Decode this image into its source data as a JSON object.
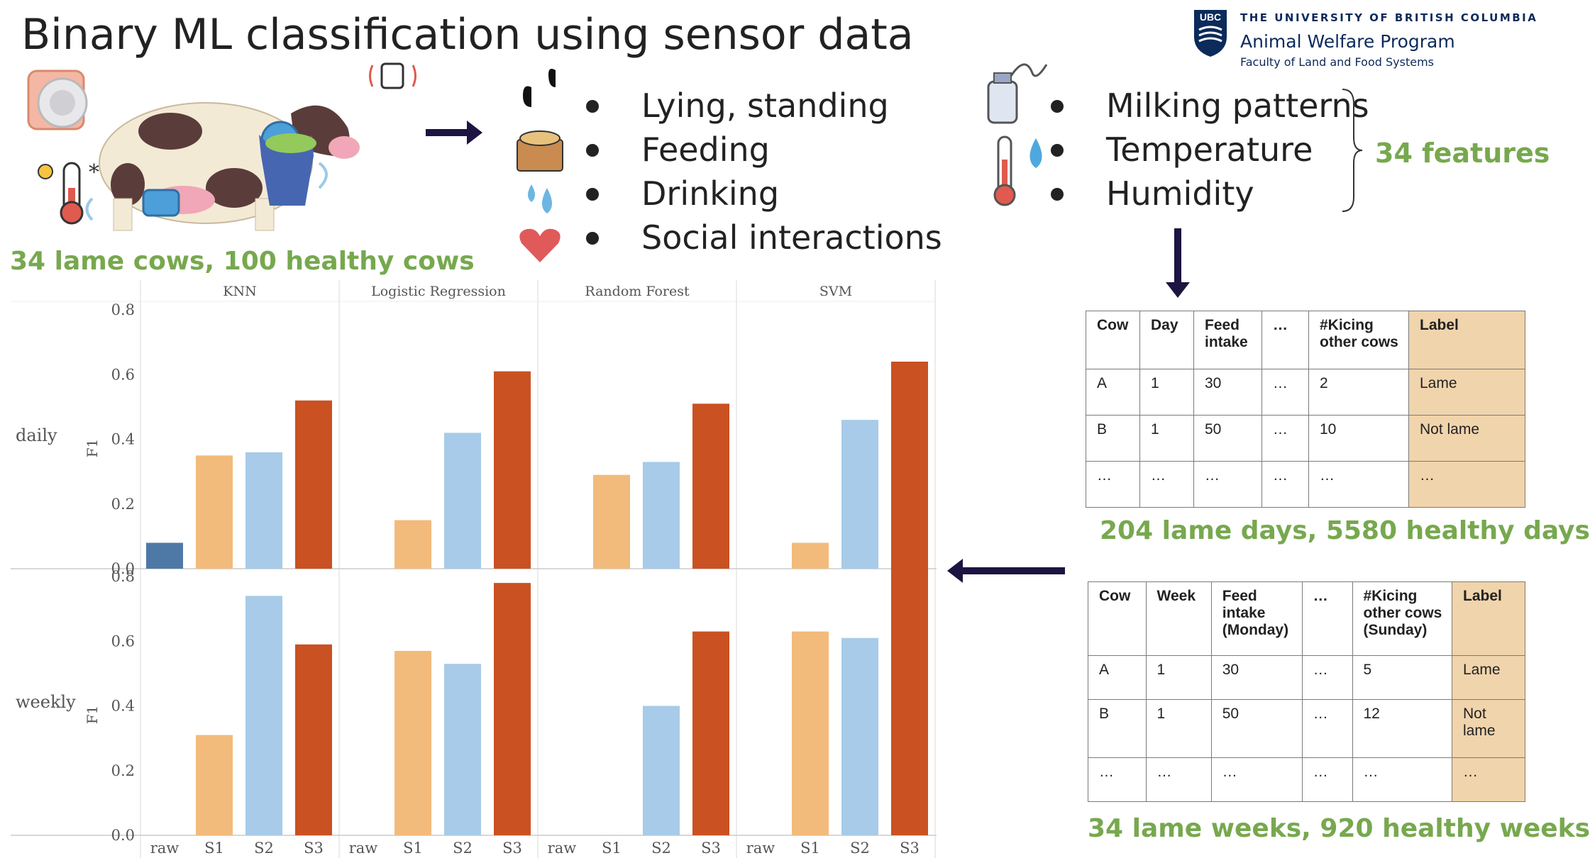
{
  "title": "Binary ML classification using sensor data",
  "university": {
    "badge": "UBC",
    "name": "THE UNIVERSITY OF BRITISH COLUMBIA",
    "program": "Animal Welfare Program",
    "faculty": "Faculty of Land and Food Systems"
  },
  "icons": {
    "cow": "cow-icon",
    "sensor": "sensor-icon",
    "thermometer": "thermometer-icon",
    "feeder": "feeder-icon",
    "hooves": "hooves-icon",
    "feed": "feed-icon",
    "drops": "drops-icon",
    "heart": "heart-icon",
    "milk_bottle": "milk-bottle-icon",
    "temperature": "temperature-icon"
  },
  "behaviors": [
    "Lying, standing",
    "Feeding",
    "Drinking",
    "Social interactions"
  ],
  "environment": [
    "Milking patterns",
    "Temperature",
    "Humidity"
  ],
  "features_label": "34 features",
  "cows_label": "34 lame cows, 100 healthy cows",
  "days_label": "204 lame days, 5580 healthy days",
  "weeks_label": "34 lame weeks, 920 healthy weeks",
  "daily_table": {
    "headers": [
      "Cow",
      "Day",
      "Feed intake",
      "…",
      "#Kicing other cows",
      "Label"
    ],
    "rows": [
      [
        "A",
        "1",
        "30",
        "…",
        "2",
        "Lame"
      ],
      [
        "B",
        "1",
        "50",
        "…",
        "10",
        "Not lame"
      ],
      [
        "…",
        "…",
        "…",
        "…",
        "…",
        "…"
      ]
    ]
  },
  "weekly_table": {
    "headers": [
      "Cow",
      "Week",
      "Feed intake (Monday)",
      "…",
      "#Kicing other cows (Sunday)",
      "Label"
    ],
    "rows": [
      [
        "A",
        "1",
        "30",
        "…",
        "5",
        "Lame"
      ],
      [
        "B",
        "1",
        "50",
        "…",
        "12",
        "Not lame"
      ],
      [
        "…",
        "…",
        "…",
        "…",
        "…",
        "…"
      ]
    ]
  },
  "colors": {
    "raw": "#4e79a7",
    "S1": "#f2bb7b",
    "S2": "#a7cbe8",
    "S3": "#c95122",
    "accent_green": "#77a84e",
    "arrow": "#1d1442"
  },
  "chart_data": {
    "type": "bar",
    "facets": [
      "KNN",
      "Logistic Regression",
      "Random Forest",
      "SVM"
    ],
    "rows": [
      "daily",
      "weekly"
    ],
    "categories": [
      "raw",
      "S1",
      "S2",
      "S3"
    ],
    "ylabel": "F1",
    "ylim": [
      0,
      0.85
    ],
    "yticks": [
      "0.0",
      "0.2",
      "0.4",
      "0.6",
      "0.8"
    ],
    "series": [
      {
        "row": "daily",
        "facet": "KNN",
        "values": [
          0.08,
          0.35,
          0.36,
          0.52
        ]
      },
      {
        "row": "daily",
        "facet": "Logistic Regression",
        "values": [
          0,
          0.15,
          0.42,
          0.61
        ]
      },
      {
        "row": "daily",
        "facet": "Random Forest",
        "values": [
          0,
          0.29,
          0.33,
          0.51
        ]
      },
      {
        "row": "daily",
        "facet": "SVM",
        "values": [
          0,
          0.08,
          0.46,
          0.64
        ]
      },
      {
        "row": "weekly",
        "facet": "KNN",
        "values": [
          0,
          0.31,
          0.74,
          0.59
        ]
      },
      {
        "row": "weekly",
        "facet": "Logistic Regression",
        "values": [
          0,
          0.57,
          0.53,
          0.78
        ]
      },
      {
        "row": "weekly",
        "facet": "Random Forest",
        "values": [
          0,
          0,
          0.4,
          0.63
        ]
      },
      {
        "row": "weekly",
        "facet": "SVM",
        "values": [
          0,
          0.63,
          0.61,
          0.85
        ]
      }
    ]
  }
}
